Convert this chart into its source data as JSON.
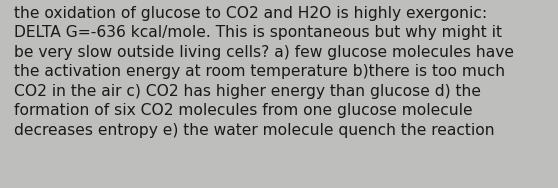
{
  "text": "the oxidation of glucose to CO2 and H2O is highly exergonic:\nDELTA G=-636 kcal/mole. This is spontaneous but why might it\nbe very slow outside living cells? a) few glucose molecules have\nthe activation energy at room temperature b)there is too much\nCO2 in the air c) CO2 has higher energy than glucose d) the\nformation of six CO2 molecules from one glucose molecule\ndecreases entropy e) the water molecule quench the reaction",
  "background_color": "#bebebd",
  "text_color": "#1a1a1a",
  "font_size": 11.2,
  "fig_width": 5.58,
  "fig_height": 1.88,
  "dpi": 100
}
